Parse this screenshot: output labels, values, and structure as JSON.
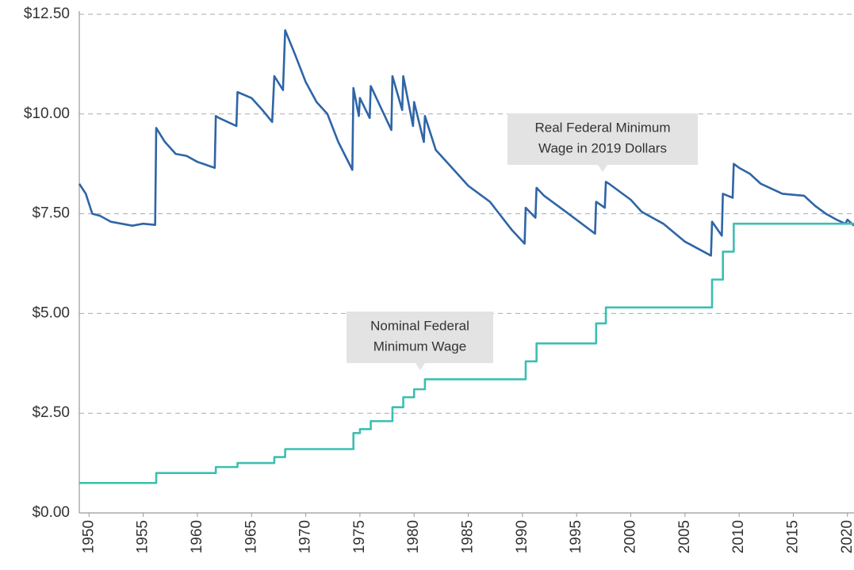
{
  "chart_data": {
    "type": "line",
    "xlim": [
      1949.1,
      2020.6
    ],
    "xticks": [
      1950,
      1955,
      1960,
      1965,
      1970,
      1975,
      1980,
      1985,
      1990,
      1995,
      2000,
      2005,
      2010,
      2015,
      2020
    ],
    "ylim": [
      0,
      12.5
    ],
    "yticks": [
      {
        "value": 0,
        "label": "$0.00"
      },
      {
        "value": 2.5,
        "label": "$2.50"
      },
      {
        "value": 5,
        "label": "$5.00"
      },
      {
        "value": 7.5,
        "label": "$7.50"
      },
      {
        "value": 10,
        "label": "$10.00"
      },
      {
        "value": 12.5,
        "label": "$12.50"
      }
    ],
    "grid": true,
    "series": [
      {
        "color": "#2e65a6",
        "x": [
          1949.1,
          1949.7,
          1950.3,
          1951,
          1952,
          1953,
          1954,
          1955,
          1956.1,
          1956.2,
          1957,
          1958,
          1959,
          1960,
          1961.6,
          1961.7,
          1962,
          1963.6,
          1963.7,
          1965,
          1966,
          1966.9,
          1967.1,
          1967.9,
          1968.1,
          1969,
          1970,
          1971,
          1972,
          1973,
          1974.3,
          1974.4,
          1974.9,
          1975.0,
          1975.9,
          1976.0,
          1977.9,
          1978.0,
          1978.9,
          1979.0,
          1979.9,
          1980.0,
          1980.9,
          1981.0,
          1982,
          1983,
          1984,
          1985,
          1986,
          1987,
          1988,
          1989,
          1990.2,
          1990.3,
          1991.2,
          1991.3,
          1992,
          1994,
          1996.7,
          1996.8,
          1997.6,
          1997.7,
          1998,
          2000,
          2001,
          2003,
          2005,
          2007.4,
          2007.5,
          2008.4,
          2008.5,
          2009.4,
          2009.5,
          2010,
          2011,
          2012,
          2014,
          2016,
          2017,
          2018,
          2019,
          2019.8,
          2020,
          2020.6
        ],
        "values": [
          8.25,
          8.0,
          7.5,
          7.45,
          7.3,
          7.25,
          7.2,
          7.25,
          7.22,
          9.65,
          9.3,
          9.0,
          8.95,
          8.8,
          8.65,
          9.95,
          9.9,
          9.7,
          10.55,
          10.4,
          10.1,
          9.8,
          10.95,
          10.6,
          12.1,
          11.5,
          10.8,
          10.3,
          10.0,
          9.3,
          8.6,
          10.65,
          9.95,
          10.4,
          9.9,
          10.7,
          9.6,
          10.95,
          10.1,
          10.95,
          9.7,
          10.3,
          9.3,
          9.95,
          9.1,
          8.8,
          8.5,
          8.2,
          8.0,
          7.8,
          7.45,
          7.1,
          6.75,
          7.65,
          7.4,
          8.15,
          7.95,
          7.55,
          7.0,
          7.8,
          7.65,
          8.3,
          8.25,
          7.85,
          7.55,
          7.25,
          6.8,
          6.45,
          7.3,
          6.95,
          8.0,
          7.9,
          8.75,
          8.65,
          8.5,
          8.25,
          8.0,
          7.95,
          7.7,
          7.5,
          7.35,
          7.25,
          7.35,
          7.2
        ]
      },
      {
        "color": "#3bbfb0",
        "x": [
          1949.1,
          1956.2,
          1956.2,
          1961.7,
          1961.7,
          1963.7,
          1963.7,
          1967.1,
          1967.1,
          1968.1,
          1968.1,
          1974.4,
          1974.4,
          1975.0,
          1975.0,
          1976.0,
          1976.0,
          1978.0,
          1978.0,
          1979.0,
          1979.0,
          1980.0,
          1980.0,
          1981.0,
          1981.0,
          1990.3,
          1990.3,
          1991.3,
          1991.3,
          1996.8,
          1996.8,
          1997.7,
          1997.7,
          2007.5,
          2007.5,
          2008.5,
          2008.5,
          2009.5,
          2009.5,
          2020.6
        ],
        "values": [
          0.75,
          0.75,
          1.0,
          1.0,
          1.15,
          1.15,
          1.25,
          1.25,
          1.4,
          1.4,
          1.6,
          1.6,
          2.0,
          2.0,
          2.1,
          2.1,
          2.3,
          2.3,
          2.65,
          2.65,
          2.9,
          2.9,
          3.1,
          3.1,
          3.35,
          3.35,
          3.8,
          3.8,
          4.25,
          4.25,
          4.75,
          4.75,
          5.15,
          5.15,
          5.85,
          5.85,
          6.55,
          6.55,
          7.25,
          7.25
        ]
      }
    ],
    "annotations": [
      {
        "lines": [
          "Real Federal Minimum",
          "Wage in 2019 Dollars"
        ]
      },
      {
        "lines": [
          "Nominal Federal",
          "Minimum Wage"
        ]
      }
    ]
  }
}
